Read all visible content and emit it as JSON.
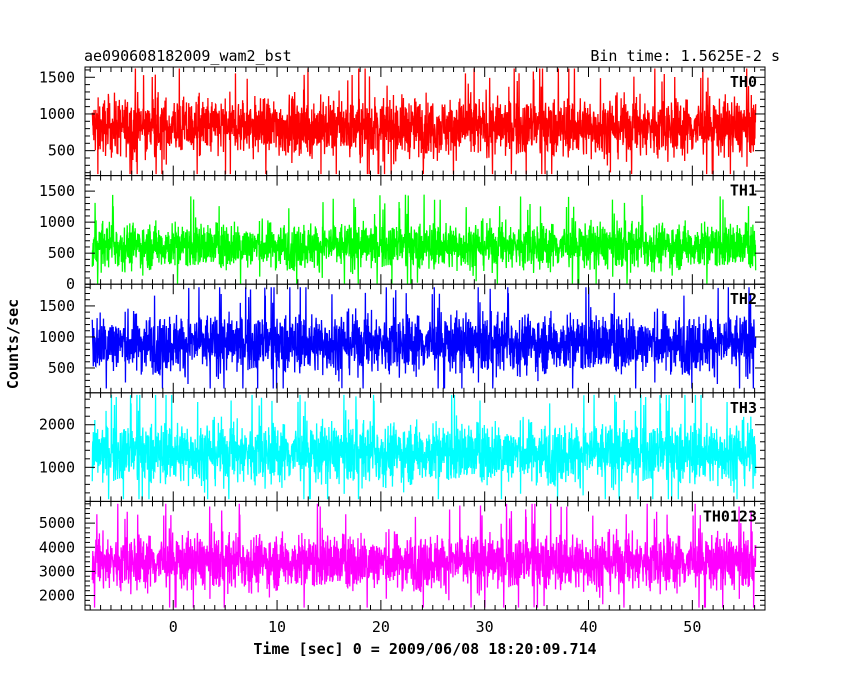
{
  "chart_data": {
    "type": "line",
    "title": "ae090608182009_wam2_bst",
    "subtitle": "Bin time: 1.5625E-2 s",
    "xlabel": "Time [sec] 0 = 2009/06/08 18:20:09.714",
    "ylabel": "Counts/sec",
    "xlim": [
      -8.5,
      57
    ],
    "x_ticks": [
      0,
      10,
      20,
      30,
      40,
      50
    ],
    "data_x_range": [
      -7.8,
      56.1
    ],
    "panels": [
      {
        "name": "TH0",
        "color": "#ff0000",
        "ylim": [
          160,
          1640
        ],
        "y_ticks": [
          500,
          1000,
          1500
        ],
        "mean": 820,
        "spread": 280,
        "min": 180,
        "max": 1620
      },
      {
        "name": "TH1",
        "color": "#00ff00",
        "ylim": [
          0,
          1750
        ],
        "y_ticks": [
          0,
          500,
          1000,
          1500
        ],
        "mean": 620,
        "spread": 260,
        "min": 10,
        "max": 1700
      },
      {
        "name": "TH2",
        "color": "#0000ff",
        "ylim": [
          100,
          1850
        ],
        "y_ticks": [
          500,
          1000,
          1500
        ],
        "mean": 900,
        "spread": 330,
        "min": 170,
        "max": 1800
      },
      {
        "name": "TH3",
        "color": "#00ffff",
        "ylim": [
          200,
          2750
        ],
        "y_ticks": [
          1000,
          2000
        ],
        "mean": 1340,
        "spread": 500,
        "min": 250,
        "max": 2700
      },
      {
        "name": "TH0123",
        "color": "#ff00ff",
        "ylim": [
          1400,
          5900
        ],
        "y_ticks": [
          2000,
          3000,
          4000,
          5000
        ],
        "mean": 3400,
        "spread": 800,
        "min": 1500,
        "max": 5800
      }
    ]
  }
}
